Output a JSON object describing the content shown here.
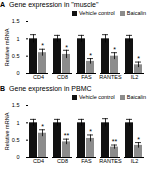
{
  "chart_data": [
    {
      "type": "bar",
      "panel": "A",
      "title": "Gene expression in \"muscle\"",
      "categories": [
        "CD4",
        "CD8",
        "FAS",
        "RANTES",
        "IL2"
      ],
      "ylabel": "Relative mRNA",
      "ylim": [
        0,
        1.5
      ],
      "yticks": [
        0,
        0.5,
        1,
        1.5
      ],
      "series": [
        {
          "name": "Vehicle control",
          "color": "#111111",
          "values": [
            1,
            1,
            1,
            1,
            1
          ],
          "errors": [
            0.12,
            0.1,
            0.1,
            0.12,
            0.1
          ]
        },
        {
          "name": "Baicalin",
          "color": "#8c8c8c",
          "values": [
            0.6,
            0.55,
            0.35,
            0.5,
            0.25
          ],
          "errors": [
            0.1,
            0.12,
            0.08,
            0.1,
            0.08
          ],
          "significance": [
            "*",
            "*",
            "*",
            "*",
            "*"
          ]
        }
      ]
    },
    {
      "type": "bar",
      "panel": "B",
      "title": "Gene expression in PBMC",
      "categories": [
        "CD4",
        "CD8",
        "FAS",
        "RANTES",
        "IL2"
      ],
      "ylabel": "Relative mRNA",
      "ylim": [
        0,
        1.5
      ],
      "yticks": [
        0,
        0.5,
        1,
        1.5
      ],
      "series": [
        {
          "name": "Vehicle control",
          "color": "#111111",
          "values": [
            1,
            1,
            1,
            1,
            1
          ],
          "errors": [
            0.1,
            0.1,
            0.1,
            0.12,
            0.1
          ]
        },
        {
          "name": "Baicalin",
          "color": "#8c8c8c",
          "values": [
            0.7,
            0.45,
            0.55,
            0.3,
            0.35
          ],
          "errors": [
            0.1,
            0.08,
            0.1,
            0.06,
            0.08
          ],
          "significance": [
            "*",
            "**",
            "*",
            "**",
            "*"
          ]
        }
      ]
    }
  ]
}
